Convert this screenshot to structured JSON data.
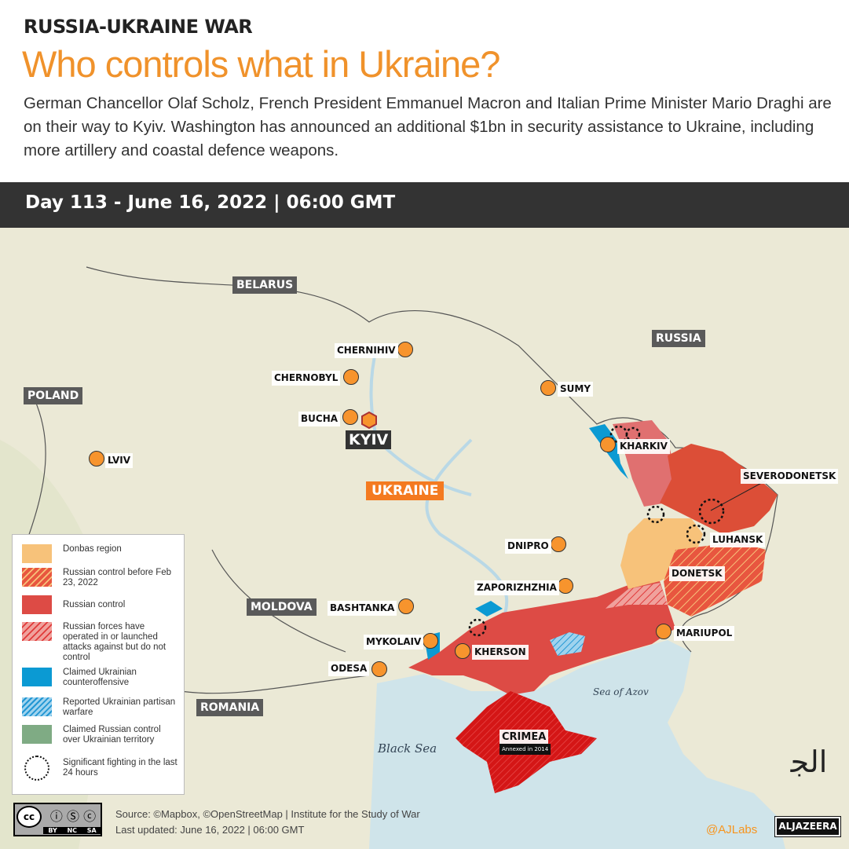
{
  "header": {
    "kicker": "RUSSIA-UKRAINE WAR",
    "title": "Who controls what in Ukraine?",
    "description": "German Chancellor Olaf Scholz, French President Emmanuel Macron and Italian Prime Minister Mario Draghi are on their way to Kyiv. Washington has announced an additional $1bn in security assistance to Ukraine, including more artillery and coastal defence weapons."
  },
  "day_bar": "Day 113 - June 16, 2022 | 06:00 GMT",
  "countries": {
    "belarus": "BELARUS",
    "russia": "RUSSIA",
    "poland": "POLAND",
    "moldova": "MOLDOVA",
    "romania": "ROMANIA",
    "ukraine": "UKRAINE"
  },
  "cities": {
    "chernihiv": "CHERNIHIV",
    "chernobyl": "CHERNOBYL",
    "sumy": "SUMY",
    "bucha": "BUCHA",
    "kyiv": "KYIV",
    "lviv": "LVIV",
    "kharkiv": "KHARKIV",
    "severodonetsk": "SEVERODONETSK",
    "luhansk": "LUHANSK",
    "dnipro": "DNIPRO",
    "donetsk": "DONETSK",
    "zaporizhzhia": "ZAPORIZHZHIA",
    "bashtanka": "BASHTANKA",
    "mariupol": "MARIUPOL",
    "mykolaiv": "MYKOLAIV",
    "kherson": "KHERSON",
    "odesa": "ODESA",
    "crimea": "CRIMEA",
    "crimea_note": "Annexed in 2014"
  },
  "seas": {
    "black_sea": "Black Sea",
    "azov": "Sea of Azov"
  },
  "legend": [
    {
      "label": "Donbas region",
      "color": "#f7c27a"
    },
    {
      "label": "Russian control before Feb 23, 2022",
      "color": "#e8563f"
    },
    {
      "label": "Russian control",
      "color": "#dd4b45"
    },
    {
      "label": "Russian forces have operated in or launched attacks against but do not control",
      "color": "#e98a86"
    },
    {
      "label": "Claimed Ukrainian counteroffensive",
      "color": "#0b9ad3"
    },
    {
      "label": "Reported Ukrainian partisan warfare",
      "color": "#3aa6dc"
    },
    {
      "label": "Claimed Russian control over Ukrainian territory",
      "color": "#7fab84"
    },
    {
      "label": "Significant fighting in the last 24 hours",
      "color": "#000000"
    }
  ],
  "footer": {
    "source": "Source: ©Mapbox, ©OpenStreetMap  |  Institute for the Study of War",
    "updated": "Last updated: June 16, 2022  |   06:00 GMT",
    "cc": [
      "BY",
      "NC",
      "SA"
    ],
    "handle": "@AJLabs",
    "brand": "ALJAZEERA"
  }
}
